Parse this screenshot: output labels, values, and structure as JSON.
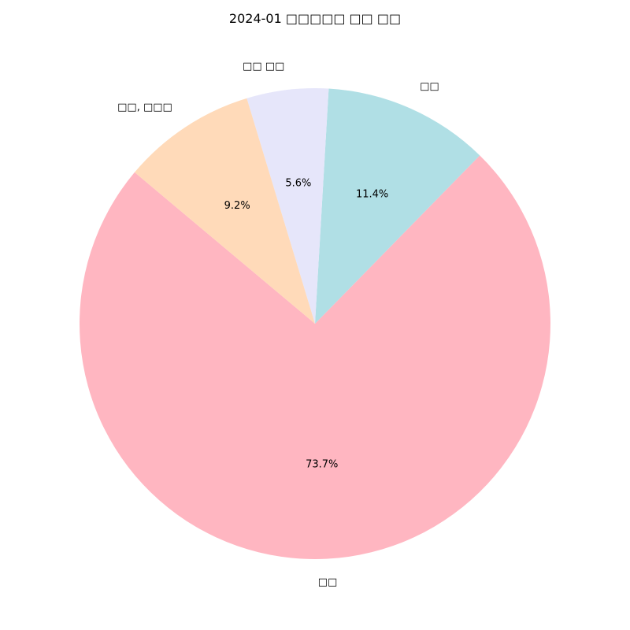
{
  "chart_data": {
    "type": "pie",
    "title": "2024-01 □□□□□ □□ □□",
    "start_angle_deg": 140,
    "direction": "counterclockwise",
    "slices": [
      {
        "label": "□□",
        "value": 73.7,
        "pct_label": "73.7%",
        "color": "#FFB6C1"
      },
      {
        "label": "□□",
        "value": 11.4,
        "pct_label": "11.4%",
        "color": "#B0DFE5"
      },
      {
        "label": "□□ □□",
        "value": 5.6,
        "pct_label": "5.6%",
        "color": "#E6E6FA"
      },
      {
        "label": "□□, □□□",
        "value": 9.2,
        "pct_label": "9.2%",
        "color": "#FFDAB9"
      }
    ]
  }
}
